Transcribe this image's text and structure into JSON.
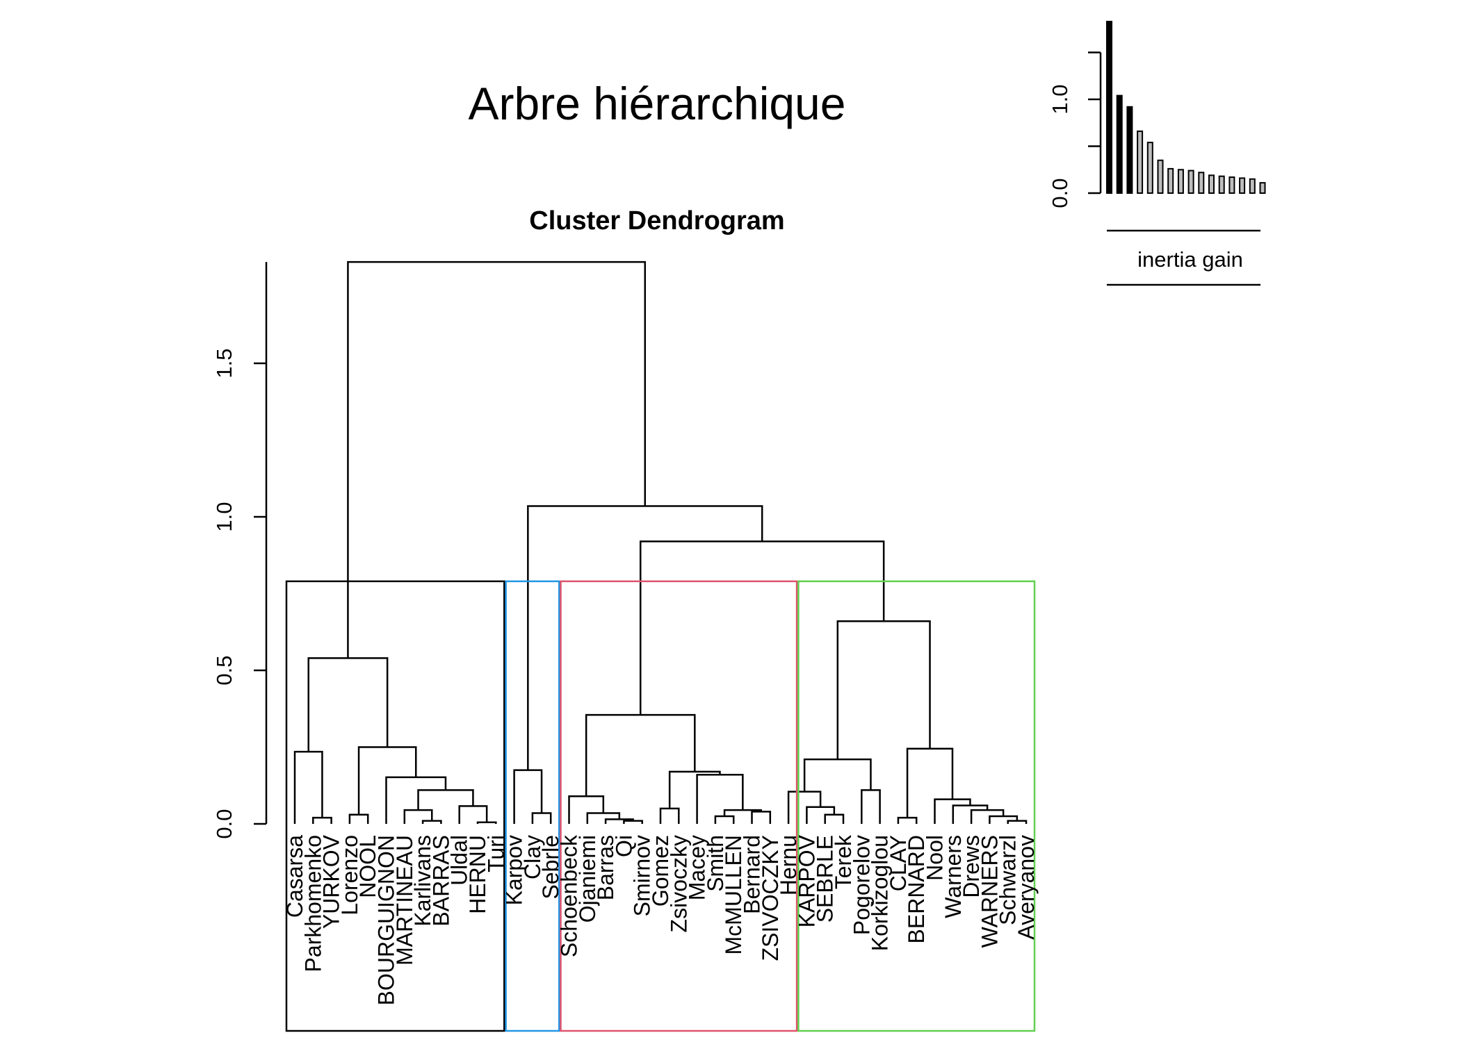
{
  "chart_data": [
    {
      "type": "dendrogram",
      "title": "Arbre hiérarchique",
      "subtitle": "Cluster Dendrogram",
      "ylabel": "",
      "xlabel": "",
      "ylim": [
        0,
        1.83
      ],
      "y_ticks": [
        "0.0",
        "0.5",
        "1.0",
        "1.5"
      ],
      "leaves": [
        "Casarsa",
        "Parkhomenko",
        "YURKOV",
        "Lorenzo",
        "NOOL",
        "BOURGUIGNON",
        "MARTINEAU",
        "Karlivans",
        "BARRAS",
        "Uldal",
        "HERNU",
        "Turi",
        "Karpov",
        "Clay",
        "Sebrle",
        "Schoenbeck",
        "Ojaniemi",
        "Barras",
        "Qi",
        "Smirnov",
        "Gomez",
        "Zsivoczky",
        "Macey",
        "Smith",
        "McMULLEN",
        "Bernard",
        "ZSIVOCZKY",
        "Hernu",
        "KARPOV",
        "SEBRLE",
        "Terek",
        "Pogorelov",
        "Korkizoglou",
        "CLAY",
        "BERNARD",
        "Nool",
        "Warners",
        "Drews",
        "WARNERS",
        "Schwarzl",
        "Averyanov"
      ],
      "merges": [
        {
          "a": "Casarsa",
          "b": "Parkhomenko+YURKOV",
          "h": 0.24
        },
        {
          "a": "Parkhomenko",
          "b": "YURKOV",
          "h": 0.02
        },
        {
          "a": "Lorenzo",
          "b": "NOOL",
          "h": 0.03
        },
        {
          "a": "Karlivans",
          "b": "BARRAS",
          "h": 0.05
        },
        {
          "a": "BARRAS",
          "b": "",
          "h": 0.01
        },
        {
          "a": "Uldal",
          "b": "HERNU+Turi",
          "h": 0.06
        },
        {
          "a": "HERNU",
          "b": "Turi",
          "h": 0.005
        }
      ],
      "clusters": [
        {
          "members": "Casarsa–Turi",
          "color": "#000000"
        },
        {
          "members": "Karpov–Sebrle",
          "color": "#2297E6"
        },
        {
          "members": "Schoenbeck–Hernu",
          "color": "#DF536B"
        },
        {
          "members": "KARPOV–Averyanov",
          "color": "#61D04F"
        }
      ]
    },
    {
      "type": "bar",
      "ylabel": "",
      "xlabel": "inertia gain",
      "y_ticks": [
        "0.0",
        "1.0"
      ],
      "values": [
        1.83,
        1.04,
        0.92,
        0.66,
        0.54,
        0.35,
        0.26,
        0.25,
        0.24,
        0.22,
        0.19,
        0.18,
        0.17,
        0.16,
        0.15,
        0.11
      ],
      "highlighted_count": 3,
      "highlight_color": "#000000",
      "other_color": "#BEBEBE"
    }
  ]
}
